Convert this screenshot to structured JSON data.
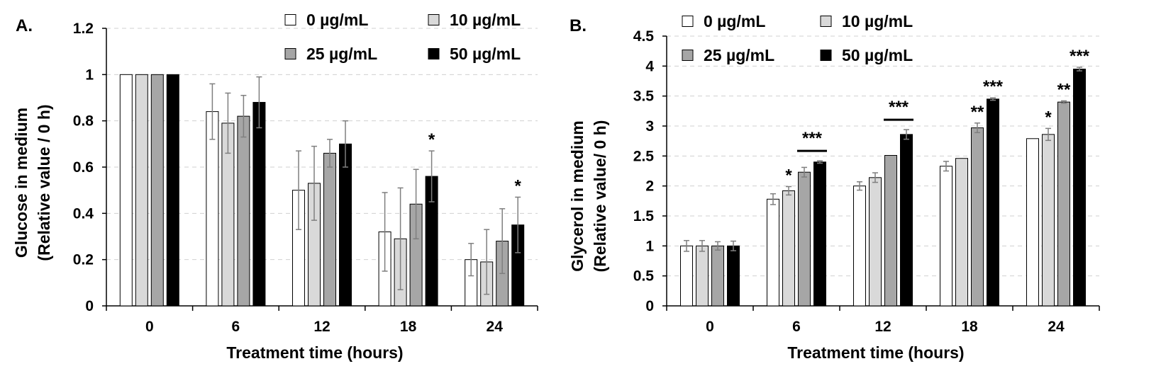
{
  "figure": {
    "description_free": true
  },
  "legend_labels": [
    "0 µg/mL",
    "10 µg/mL",
    "25 µg/mL",
    "50 µg/mL"
  ],
  "series_colors": [
    "#ffffff",
    "#d9d9d9",
    "#a6a6a6",
    "#000000"
  ],
  "chart_data": [
    {
      "type": "bar",
      "panel_label": "A.",
      "title": "",
      "xlabel": "Treatment time (hours)",
      "ylabel_line1": "Glucose in medium",
      "ylabel_line2": "(Relative value / 0 h)",
      "categories": [
        "0",
        "6",
        "12",
        "18",
        "24"
      ],
      "ylim": [
        0,
        1.2
      ],
      "yticks": [
        0,
        0.2,
        0.4,
        0.6,
        0.8,
        1,
        1.2
      ],
      "ytick_labels": [
        "0",
        "0.2",
        "0.4",
        "0.6",
        "0.8",
        "1",
        "1.2"
      ],
      "grid": true,
      "legend_position": "top-right",
      "series": [
        {
          "name": "0 µg/mL",
          "values": [
            1.0,
            0.84,
            0.5,
            0.32,
            0.2
          ],
          "errors": [
            0.0,
            0.12,
            0.17,
            0.17,
            0.07
          ]
        },
        {
          "name": "10 µg/mL",
          "values": [
            1.0,
            0.79,
            0.53,
            0.29,
            0.19
          ],
          "errors": [
            0.0,
            0.13,
            0.16,
            0.22,
            0.14
          ]
        },
        {
          "name": "25 µg/mL",
          "values": [
            1.0,
            0.82,
            0.66,
            0.44,
            0.28
          ],
          "errors": [
            0.0,
            0.09,
            0.06,
            0.15,
            0.14
          ]
        },
        {
          "name": "50 µg/mL",
          "values": [
            1.0,
            0.88,
            0.7,
            0.56,
            0.35
          ],
          "errors": [
            0.0,
            0.11,
            0.1,
            0.11,
            0.12
          ]
        }
      ],
      "annotations": [
        {
          "category": 3,
          "series": 3,
          "text": "*"
        },
        {
          "category": 4,
          "series": 3,
          "text": "*"
        }
      ]
    },
    {
      "type": "bar",
      "panel_label": "B.",
      "title": "",
      "xlabel": "Treatment time (hours)",
      "ylabel_line1": "Glycerol in medium",
      "ylabel_line2": "(Relative value/ 0 h)",
      "categories": [
        "0",
        "6",
        "12",
        "18",
        "24"
      ],
      "ylim": [
        0,
        4.5
      ],
      "yticks": [
        0,
        0.5,
        1,
        1.5,
        2,
        2.5,
        3,
        3.5,
        4,
        4.5
      ],
      "ytick_labels": [
        "0",
        "0.5",
        "1",
        "1.5",
        "2",
        "2.5",
        "3",
        "3.5",
        "4",
        "4.5"
      ],
      "grid": true,
      "legend_position": "top-left",
      "series": [
        {
          "name": "0 µg/mL",
          "values": [
            1.0,
            1.78,
            2.0,
            2.33,
            2.79
          ],
          "errors": [
            0.09,
            0.09,
            0.07,
            0.08,
            0.0
          ]
        },
        {
          "name": "10 µg/mL",
          "values": [
            1.0,
            1.92,
            2.14,
            2.46,
            2.86
          ],
          "errors": [
            0.09,
            0.07,
            0.08,
            0.0,
            0.1
          ]
        },
        {
          "name": "25 µg/mL",
          "values": [
            1.0,
            2.23,
            2.51,
            2.97,
            3.4
          ],
          "errors": [
            0.07,
            0.08,
            0.0,
            0.08,
            0.02
          ]
        },
        {
          "name": "50 µg/mL",
          "values": [
            1.0,
            2.4,
            2.86,
            3.45,
            3.95
          ],
          "errors": [
            0.08,
            0.02,
            0.08,
            0.02,
            0.03
          ]
        }
      ],
      "annotations": [
        {
          "category": 1,
          "series": 1,
          "text": "*"
        },
        {
          "category": 1,
          "series": 3,
          "text": "***",
          "bracket": true
        },
        {
          "category": 2,
          "series": 3,
          "text": "***",
          "bracket": true
        },
        {
          "category": 3,
          "series": 2,
          "text": "**"
        },
        {
          "category": 3,
          "series": 3,
          "text": "***"
        },
        {
          "category": 4,
          "series": 1,
          "text": "*"
        },
        {
          "category": 4,
          "series": 2,
          "text": "**"
        },
        {
          "category": 4,
          "series": 3,
          "text": "***"
        }
      ]
    }
  ]
}
